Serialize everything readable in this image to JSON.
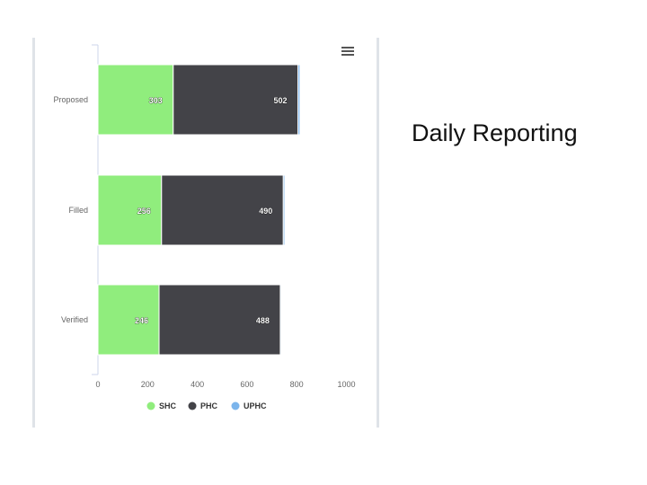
{
  "slide": {
    "title": "Daily Reporting"
  },
  "chart_menu": {
    "icon": "hamburger-menu-icon"
  },
  "chart_data": {
    "type": "bar",
    "orientation": "horizontal",
    "stacked": true,
    "categories": [
      "Proposed",
      "Filled",
      "Verified"
    ],
    "series": [
      {
        "name": "SHC",
        "color": "#90ed7d",
        "values": [
          303,
          256,
          246
        ]
      },
      {
        "name": "PHC",
        "color": "#434348",
        "values": [
          502,
          490,
          488
        ]
      },
      {
        "name": "UPHC",
        "color": "#7cb5ec",
        "values": [
          8,
          6,
          4
        ]
      }
    ],
    "value_labels": [
      [
        "303",
        "502",
        ""
      ],
      [
        "256",
        "490",
        ""
      ],
      [
        "246",
        "488",
        ""
      ]
    ],
    "xlim": [
      0,
      1000
    ],
    "x_ticks": [
      "0",
      "200",
      "400",
      "600",
      "800",
      "1000"
    ],
    "legend": {
      "position": "bottom"
    },
    "grid": false
  }
}
